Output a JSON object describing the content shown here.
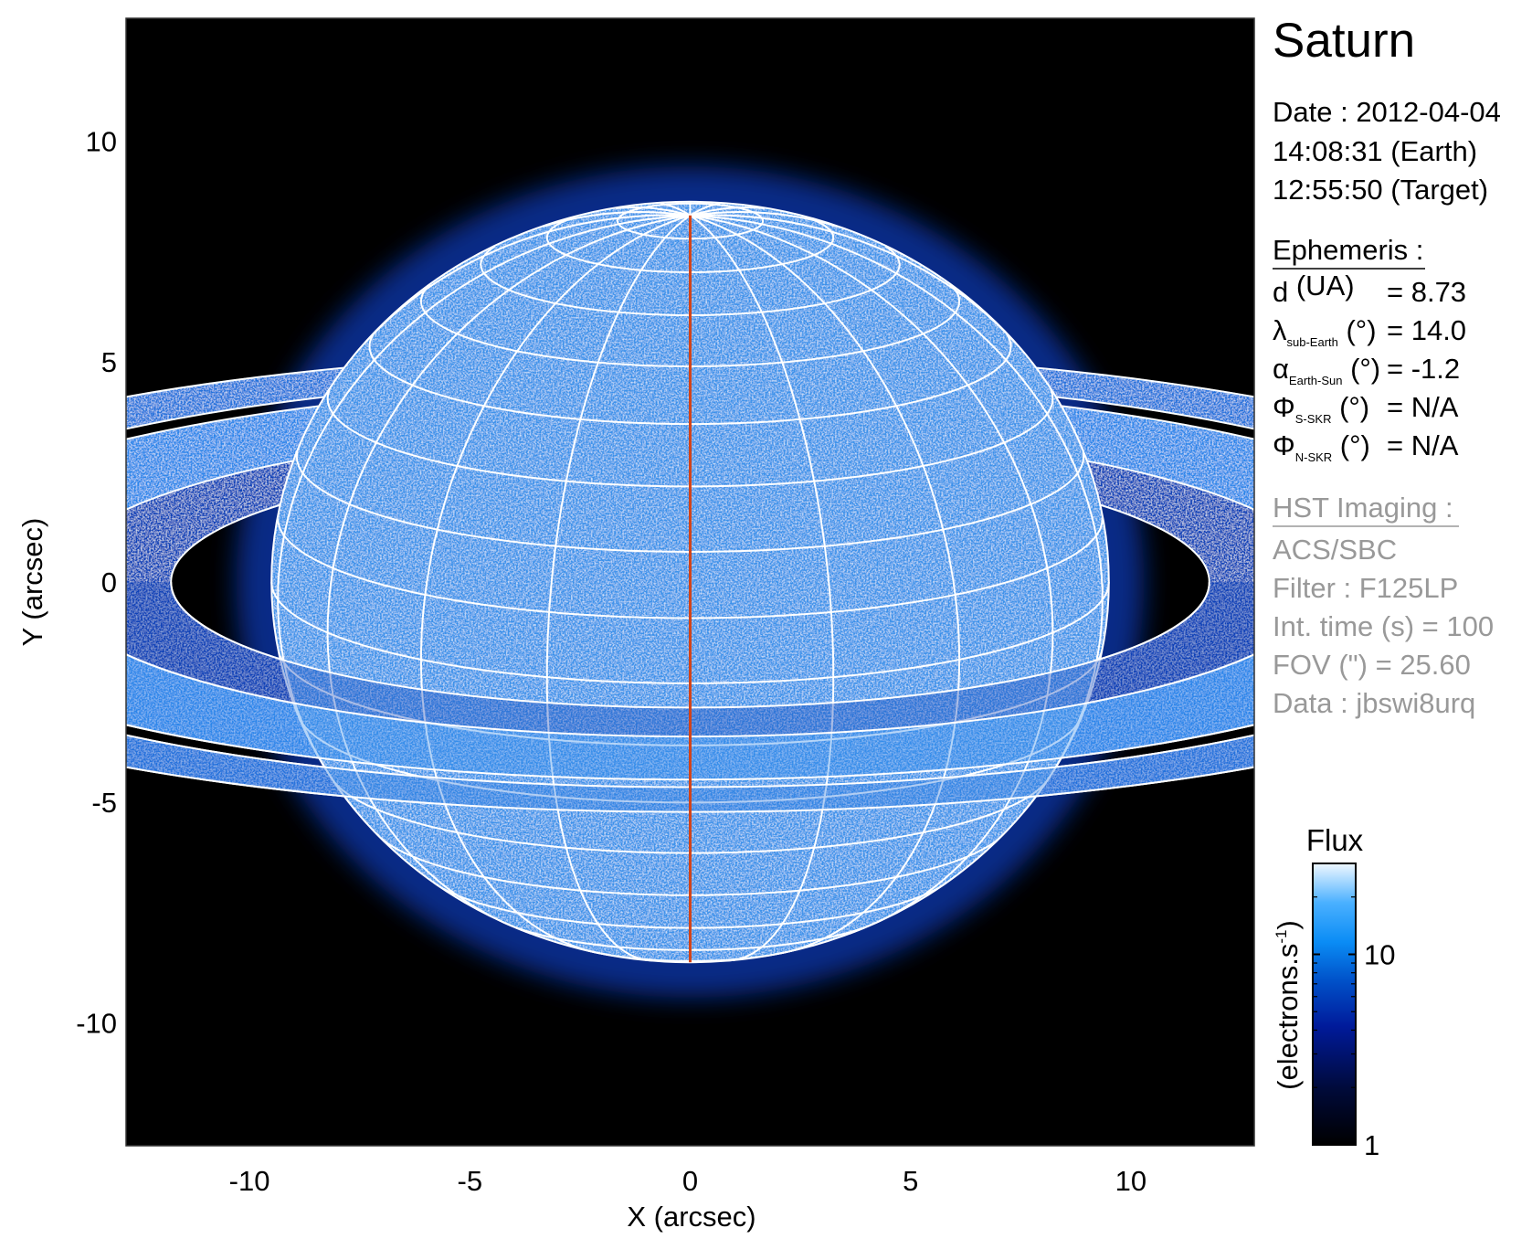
{
  "panel": {
    "title": "Saturn",
    "date": "Date : 2012-04-04",
    "time_earth": "14:08:31 (Earth)",
    "time_target": "12:55:50 (Target)",
    "ephemeris_heading": "Ephemeris :",
    "ephemeris": [
      {
        "symbol": "d",
        "sub": "",
        "unit": " (UA)",
        "value": "= 8.73"
      },
      {
        "symbol": "λ",
        "sub": "sub-Earth",
        "unit": " (°)",
        "value": "= 14.0"
      },
      {
        "symbol": "α",
        "sub": "Earth-Sun",
        "unit": " (°)",
        "value": "= -1.2"
      },
      {
        "symbol": "Φ",
        "sub": "S-SKR",
        "unit": " (°)",
        "value": "= N/A"
      },
      {
        "symbol": "Φ",
        "sub": "N-SKR",
        "unit": " (°)",
        "value": "= N/A"
      }
    ],
    "imaging_heading": "HST Imaging :",
    "imaging": [
      "ACS/SBC",
      "Filter : F125LP",
      "Int. time (s) = 100",
      "FOV (\") = 25.60",
      "Data : jbswi8urq"
    ]
  },
  "chart_data": {
    "type": "heatmap",
    "xlabel": "X (arcsec)",
    "ylabel": "Y (arcsec)",
    "xlim": [
      -12.8,
      12.8
    ],
    "ylim": [
      -12.8,
      12.8
    ],
    "xticks": [
      -10,
      -5,
      0,
      5,
      10
    ],
    "yticks": [
      -10,
      -5,
      0,
      5,
      10
    ],
    "xtick_labels": [
      "-10",
      "-5",
      "0",
      "5",
      "10"
    ],
    "ytick_labels": [
      "-10",
      "-5",
      "0",
      "5",
      "10"
    ],
    "background_color": "#000000",
    "overlay": {
      "grid_color": "#ffffff",
      "central_meridian_color": "#d2441a",
      "sub_earth_latitude_deg": 14.0,
      "latitude_step_deg": 10,
      "longitude_step_deg": 20
    },
    "colorbar": {
      "title": "Flux",
      "label": "(electrons.s",
      "label_sup": "-1",
      "label_close": ")",
      "scale": "log",
      "range": [
        1,
        30
      ],
      "ticks": [
        1,
        10
      ],
      "tick_labels": [
        "1",
        "10"
      ],
      "colors": [
        "#000000",
        "#000a3a",
        "#001a9a",
        "#0050c8",
        "#0a8cf5",
        "#4ab0ff",
        "#f0f8ff"
      ]
    }
  }
}
